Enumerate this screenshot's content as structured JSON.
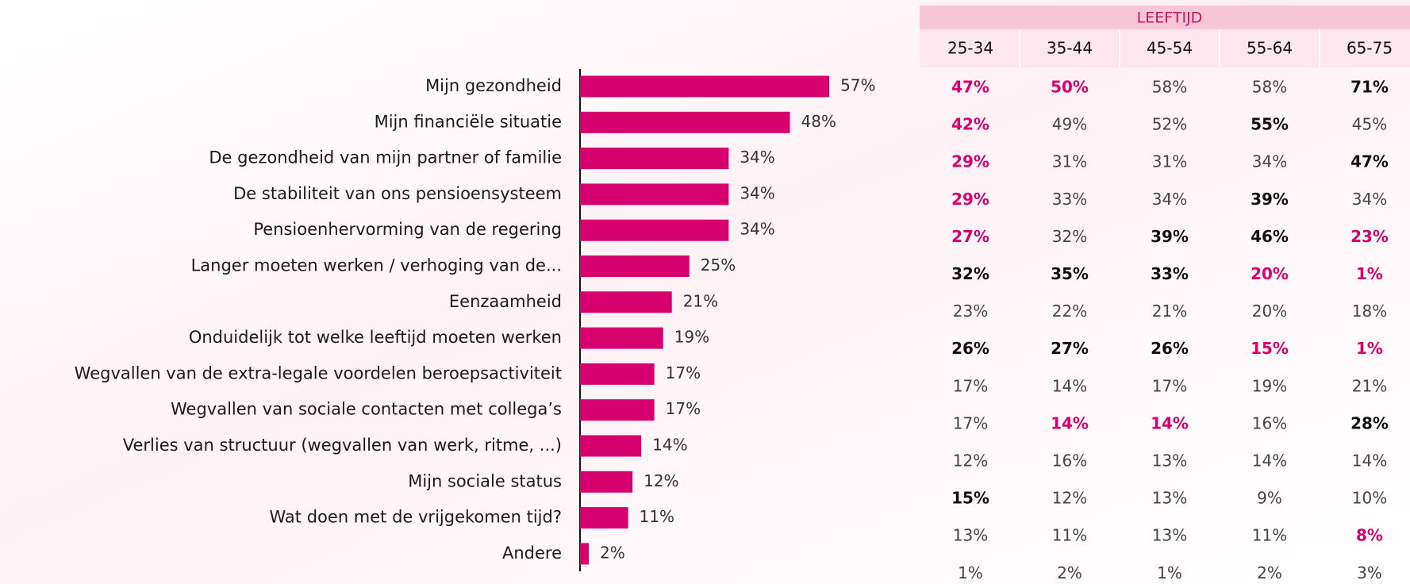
{
  "chart_data": {
    "type": "barh",
    "categories": [
      "Mijn gezondheid",
      "Mijn financiële situatie",
      "De gezondheid van mijn partner of familie",
      "De stabiliteit van ons pensioensysteem",
      "Pensioenhervorming van de regering",
      "Langer moeten werken / verhoging van de...",
      "Eenzaamheid",
      "Onduidelijk tot welke leeftijd moeten werken",
      "Wegvallen van de extra-legale voordelen beroepsactiviteit",
      "Wegvallen van sociale contacten met collega’s",
      "Verlies van structuur (wegvallen van werk, ritme, ...)",
      "Mijn sociale status",
      "Wat doen met de vrijgekomen tijd?",
      "Andere"
    ],
    "values": [
      57,
      48,
      34,
      34,
      34,
      25,
      21,
      19,
      17,
      17,
      14,
      12,
      11,
      2
    ],
    "value_labels": [
      "57%",
      "48%",
      "34%",
      "34%",
      "34%",
      "25%",
      "21%",
      "19%",
      "17%",
      "17%",
      "14%",
      "12%",
      "11%",
      "2%"
    ],
    "color": "#d6006f",
    "xlim": [
      0,
      100
    ]
  },
  "table": {
    "title": "LEEFTIJD",
    "columns": [
      "25-34",
      "35-44",
      "45-54",
      "55-64",
      "65-75"
    ],
    "rows": [
      [
        "47%",
        "50%",
        "58%",
        "58%",
        "71%"
      ],
      [
        "42%",
        "49%",
        "52%",
        "55%",
        "45%"
      ],
      [
        "29%",
        "31%",
        "31%",
        "34%",
        "47%"
      ],
      [
        "29%",
        "33%",
        "34%",
        "39%",
        "34%"
      ],
      [
        "27%",
        "32%",
        "39%",
        "46%",
        "23%"
      ],
      [
        "32%",
        "35%",
        "33%",
        "20%",
        "1%"
      ],
      [
        "23%",
        "22%",
        "21%",
        "20%",
        "18%"
      ],
      [
        "26%",
        "27%",
        "26%",
        "15%",
        "1%"
      ],
      [
        "17%",
        "14%",
        "17%",
        "19%",
        "21%"
      ],
      [
        "17%",
        "14%",
        "14%",
        "16%",
        "28%"
      ],
      [
        "12%",
        "16%",
        "13%",
        "14%",
        "14%"
      ],
      [
        "15%",
        "12%",
        "13%",
        "9%",
        "10%"
      ],
      [
        "13%",
        "11%",
        "13%",
        "11%",
        "8%"
      ],
      [
        "1%",
        "2%",
        "1%",
        "2%",
        "3%"
      ]
    ],
    "cell_colors": [
      [
        "#d6006f",
        "#d6006f",
        null,
        null,
        "#111111"
      ],
      [
        "#d6006f",
        null,
        null,
        "#111111",
        null
      ],
      [
        "#d6006f",
        null,
        null,
        null,
        "#111111"
      ],
      [
        "#d6006f",
        null,
        null,
        "#111111",
        null
      ],
      [
        "#d6006f",
        null,
        "#111111",
        "#111111",
        "#d6006f"
      ],
      [
        "#111111",
        "#111111",
        "#111111",
        "#d6006f",
        "#d6006f"
      ],
      [
        null,
        null,
        null,
        null,
        null
      ],
      [
        "#111111",
        "#111111",
        "#111111",
        "#d6006f",
        "#d6006f"
      ],
      [
        null,
        null,
        null,
        null,
        null
      ],
      [
        null,
        "#d6006f",
        "#d6006f",
        null,
        "#111111"
      ],
      [
        null,
        null,
        null,
        null,
        null
      ],
      [
        "#111111",
        null,
        null,
        null,
        null
      ],
      [
        null,
        null,
        null,
        null,
        "#d6006f"
      ],
      [
        null,
        null,
        null,
        null,
        null
      ]
    ]
  }
}
